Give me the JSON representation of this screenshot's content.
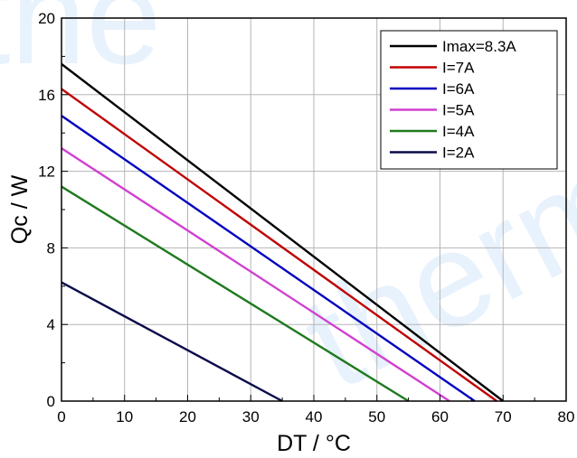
{
  "chart_data": {
    "type": "line",
    "xlabel": "DT / °C",
    "ylabel": "Qc / W",
    "xlim": [
      0,
      80
    ],
    "ylim": [
      0,
      20
    ],
    "xticks": [
      0,
      10,
      20,
      30,
      40,
      50,
      60,
      70,
      80
    ],
    "yticks": [
      0,
      4,
      8,
      12,
      16,
      20
    ],
    "grid": true,
    "legend_position": "top-right",
    "series": [
      {
        "name": "Imax=8.3A",
        "color": "#000000",
        "x": [
          0,
          70
        ],
        "y": [
          17.6,
          0
        ]
      },
      {
        "name": "I=7A",
        "color": "#c00000",
        "x": [
          0,
          69
        ],
        "y": [
          16.3,
          0
        ]
      },
      {
        "name": "I=6A",
        "color": "#0000c0",
        "x": [
          0,
          65.5
        ],
        "y": [
          14.9,
          0
        ]
      },
      {
        "name": "I=5A",
        "color": "#d040d0",
        "x": [
          0,
          61.5
        ],
        "y": [
          13.2,
          0
        ]
      },
      {
        "name": "I=4A",
        "color": "#1f7a1f",
        "x": [
          0,
          55
        ],
        "y": [
          11.2,
          0
        ]
      },
      {
        "name": "I=2A",
        "color": "#0a0a4a",
        "x": [
          0,
          35
        ],
        "y": [
          6.2,
          0
        ]
      }
    ]
  },
  "watermark": {
    "left": "the",
    "right": "therm"
  }
}
